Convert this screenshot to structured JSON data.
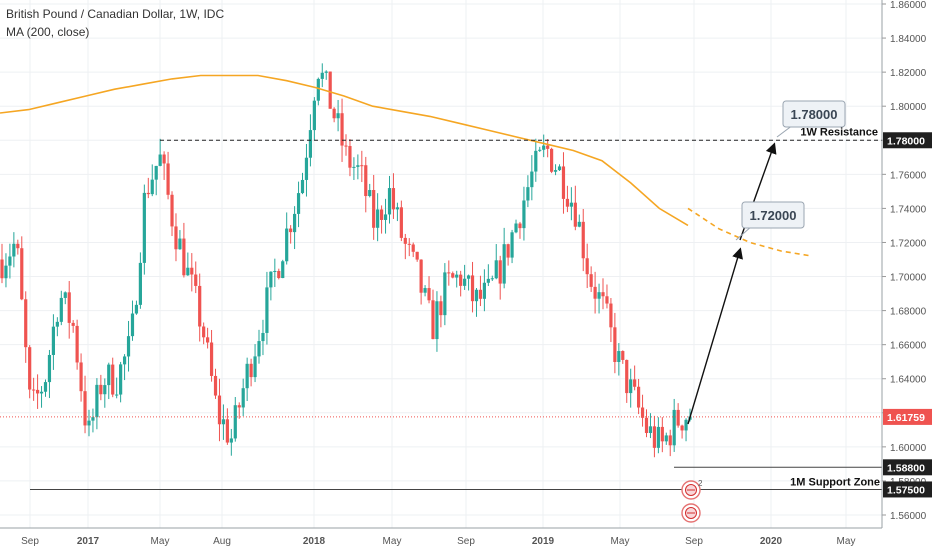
{
  "header": {
    "title": "British Pound / Canadian Dollar, 1W, IDC",
    "indicator": "MA (200, close)"
  },
  "colors": {
    "up": "#26a69a",
    "down": "#ef5350",
    "ma": "#f5a623",
    "axis_text": "#555555",
    "price_tag": "#ef5350"
  },
  "chart_data": {
    "type": "candlestick",
    "title": "British Pound / Canadian Dollar, 1W, IDC",
    "ylim": [
      1.555,
      1.865
    ],
    "y_ticks": [
      "1.86000",
      "1.84000",
      "1.82000",
      "1.80000",
      "1.78000",
      "1.76000",
      "1.74000",
      "1.72000",
      "1.70000",
      "1.68000",
      "1.66000",
      "1.64000",
      "1.62000",
      "1.60000",
      "1.58000",
      "1.56000"
    ],
    "x_ticks": [
      "Sep",
      "2017",
      "May",
      "Aug",
      "2018",
      "May",
      "Sep",
      "2019",
      "May",
      "Sep",
      "2020",
      "May"
    ],
    "grid": true,
    "current_price": "1.61759",
    "levels": [
      {
        "price": 1.78,
        "label": "1.78000",
        "annotation": "1W Resistance"
      },
      {
        "price": 1.588,
        "label": "1.58800",
        "annotation": ""
      },
      {
        "price": 1.575,
        "label": "1.57500",
        "annotation": "1M Support Zone"
      }
    ],
    "targets": [
      "1.78000",
      "1.72000"
    ],
    "ma_series": [
      1.796,
      1.798,
      1.802,
      1.806,
      1.81,
      1.813,
      1.816,
      1.818,
      1.818,
      1.818,
      1.815,
      1.811,
      1.806,
      1.8,
      1.797,
      1.794,
      1.79,
      1.786,
      1.782,
      1.778,
      1.774,
      1.768,
      1.755,
      1.74,
      1.73
    ],
    "projection": [
      1.74,
      1.728,
      1.72,
      1.715,
      1.712
    ],
    "candles_close_anchors": [
      1.71,
      1.72,
      1.62,
      1.64,
      1.69,
      1.67,
      1.605,
      1.64,
      1.64,
      1.66,
      1.75,
      1.77,
      1.73,
      1.7,
      1.67,
      1.62,
      1.605,
      1.64,
      1.67,
      1.7,
      1.73,
      1.76,
      1.825,
      1.8,
      1.77,
      1.76,
      1.73,
      1.75,
      1.72,
      1.7,
      1.67,
      1.695,
      1.7,
      1.685,
      1.69,
      1.71,
      1.735,
      1.76,
      1.775,
      1.76,
      1.74,
      1.7,
      1.68,
      1.65,
      1.63,
      1.61,
      1.6,
      1.615,
      1.62
    ]
  }
}
